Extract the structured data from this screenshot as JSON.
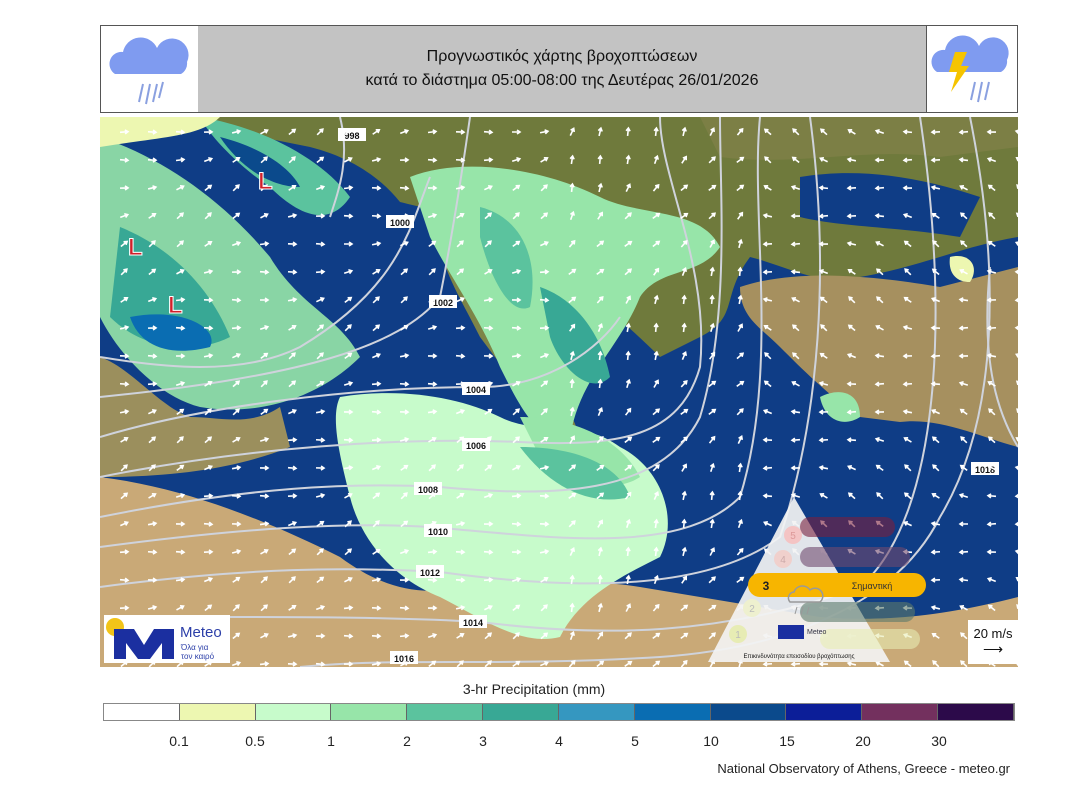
{
  "header": {
    "title_line1": "Προγνωστικός χάρτης βροχοπτώσεων",
    "title_line2": "κατά το διάστημα 05:00-08:00 της Δευτέρας 26/01/2026",
    "left_icon": "rain-cloud-icon",
    "right_icon": "thunderstorm-cloud-icon"
  },
  "map": {
    "low_pressure_label": "L",
    "isobars": [
      "998",
      "1000",
      "1002",
      "1004",
      "1006",
      "1008",
      "1010",
      "1012",
      "1014",
      "1016",
      "1018"
    ],
    "wind_scale_label": "20 m/s",
    "logo": {
      "brand": "Meteo",
      "tagline_1": "Όλα για",
      "tagline_2": "τον καιρό"
    },
    "hazard_triangle": {
      "levels": [
        "1",
        "2",
        "3",
        "4",
        "5"
      ],
      "active_level": 3,
      "active_label": "Σημαντική",
      "caption": "Επικινδυνότητα επεισοδίου βροχόπτωσης",
      "colors": {
        "1": "#e7ecb4",
        "2": "#dfe8b0",
        "3": "#f7b500",
        "4": "#6f4a6e",
        "5": "#7a1f3d"
      }
    }
  },
  "legend": {
    "title": "3-hr Precipitation (mm)",
    "ticks": [
      "0.1",
      "0.5",
      "1",
      "2",
      "3",
      "4",
      "5",
      "10",
      "15",
      "20",
      "30"
    ],
    "colors": [
      "#ffffff",
      "#edf7b1",
      "#c7fbcb",
      "#97e5a9",
      "#5bc39e",
      "#38a895",
      "#3597c0",
      "#0a6db2",
      "#0b4a8c",
      "#0c1e98",
      "#73305e",
      "#2c0a4a"
    ]
  },
  "credit": "National Observatory of Athens, Greece - meteo.gr"
}
